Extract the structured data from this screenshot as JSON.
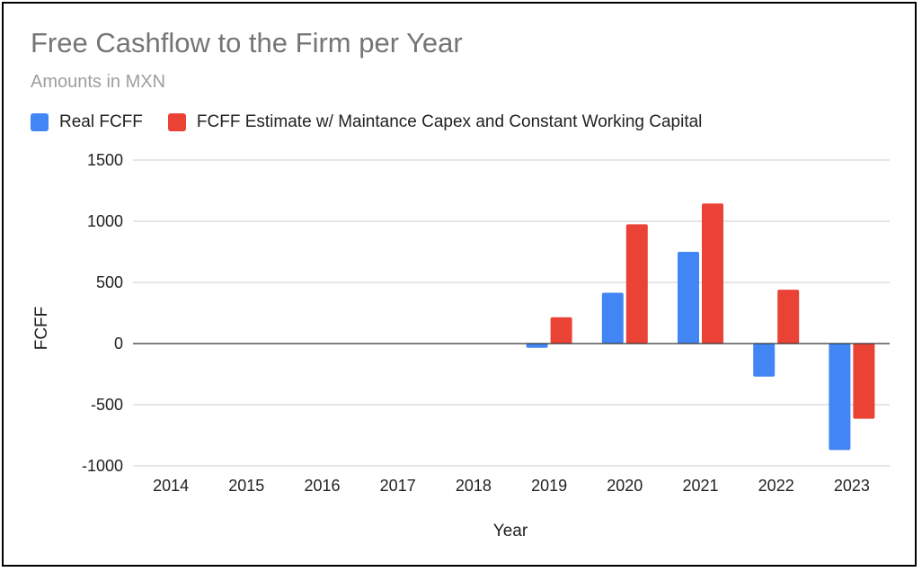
{
  "chart_data": {
    "type": "bar",
    "title": "Free Cashflow to the Firm per Year",
    "subtitle": "Amounts in MXN",
    "xlabel": "Year",
    "ylabel": "FCFF",
    "ylim": [
      -1000,
      1500
    ],
    "yticks": [
      1500,
      1000,
      500,
      0,
      -500,
      -1000
    ],
    "grid": true,
    "legend_position": "top",
    "categories": [
      "2014",
      "2015",
      "2016",
      "2017",
      "2018",
      "2019",
      "2020",
      "2021",
      "2022",
      "2023"
    ],
    "series": [
      {
        "name": "Real FCFF",
        "color": "#4285f4",
        "values": [
          0,
          0,
          0,
          0,
          0,
          -35,
          415,
          750,
          -270,
          -870
        ]
      },
      {
        "name": "FCFF Estimate w/ Maintance Capex and Constant Working Capital",
        "color": "#ea4335",
        "values": [
          0,
          0,
          0,
          0,
          0,
          215,
          975,
          1145,
          440,
          -615
        ]
      }
    ]
  }
}
